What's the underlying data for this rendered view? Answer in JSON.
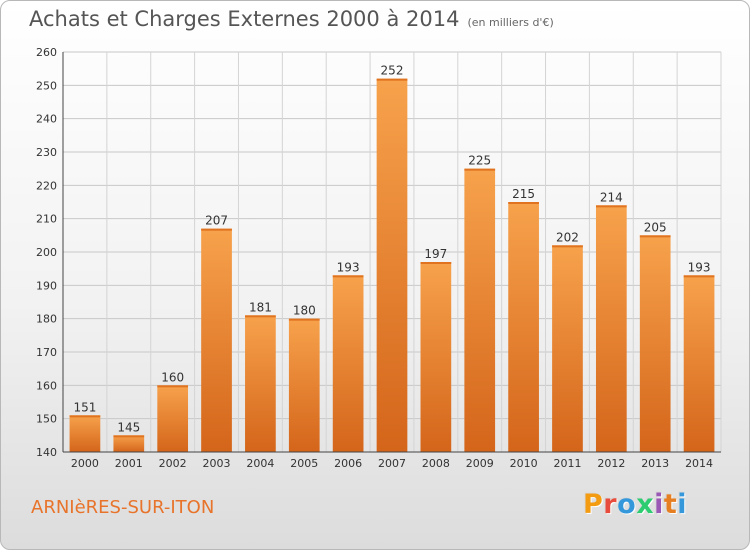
{
  "header": {
    "title": "Achats et Charges Externes 2000 à 2014",
    "subtitle": "(en milliers d'€)"
  },
  "footer": {
    "commune": "ARNIèRES-SUR-ITON",
    "logo_text": "Proxiti",
    "logo_colors": [
      "#f39c12",
      "#e74c3c",
      "#3498db",
      "#2ecc71",
      "#9b59b6",
      "#e67e22",
      "#3498db"
    ]
  },
  "chart_data": {
    "type": "bar",
    "categories": [
      "2000",
      "2001",
      "2002",
      "2003",
      "2004",
      "2005",
      "2006",
      "2007",
      "2008",
      "2009",
      "2010",
      "2011",
      "2012",
      "2013",
      "2014"
    ],
    "values": [
      151,
      145,
      160,
      207,
      181,
      180,
      193,
      252,
      197,
      225,
      215,
      202,
      214,
      205,
      193
    ],
    "title": "Achats et Charges Externes 2000 à 2014",
    "xlabel": "",
    "ylabel": "",
    "ylim": [
      140,
      260
    ],
    "yticks": [
      140,
      150,
      160,
      170,
      180,
      190,
      200,
      210,
      220,
      230,
      240,
      250,
      260
    ],
    "grid": true,
    "bar_color": "#f0913a",
    "data_labels": true
  }
}
